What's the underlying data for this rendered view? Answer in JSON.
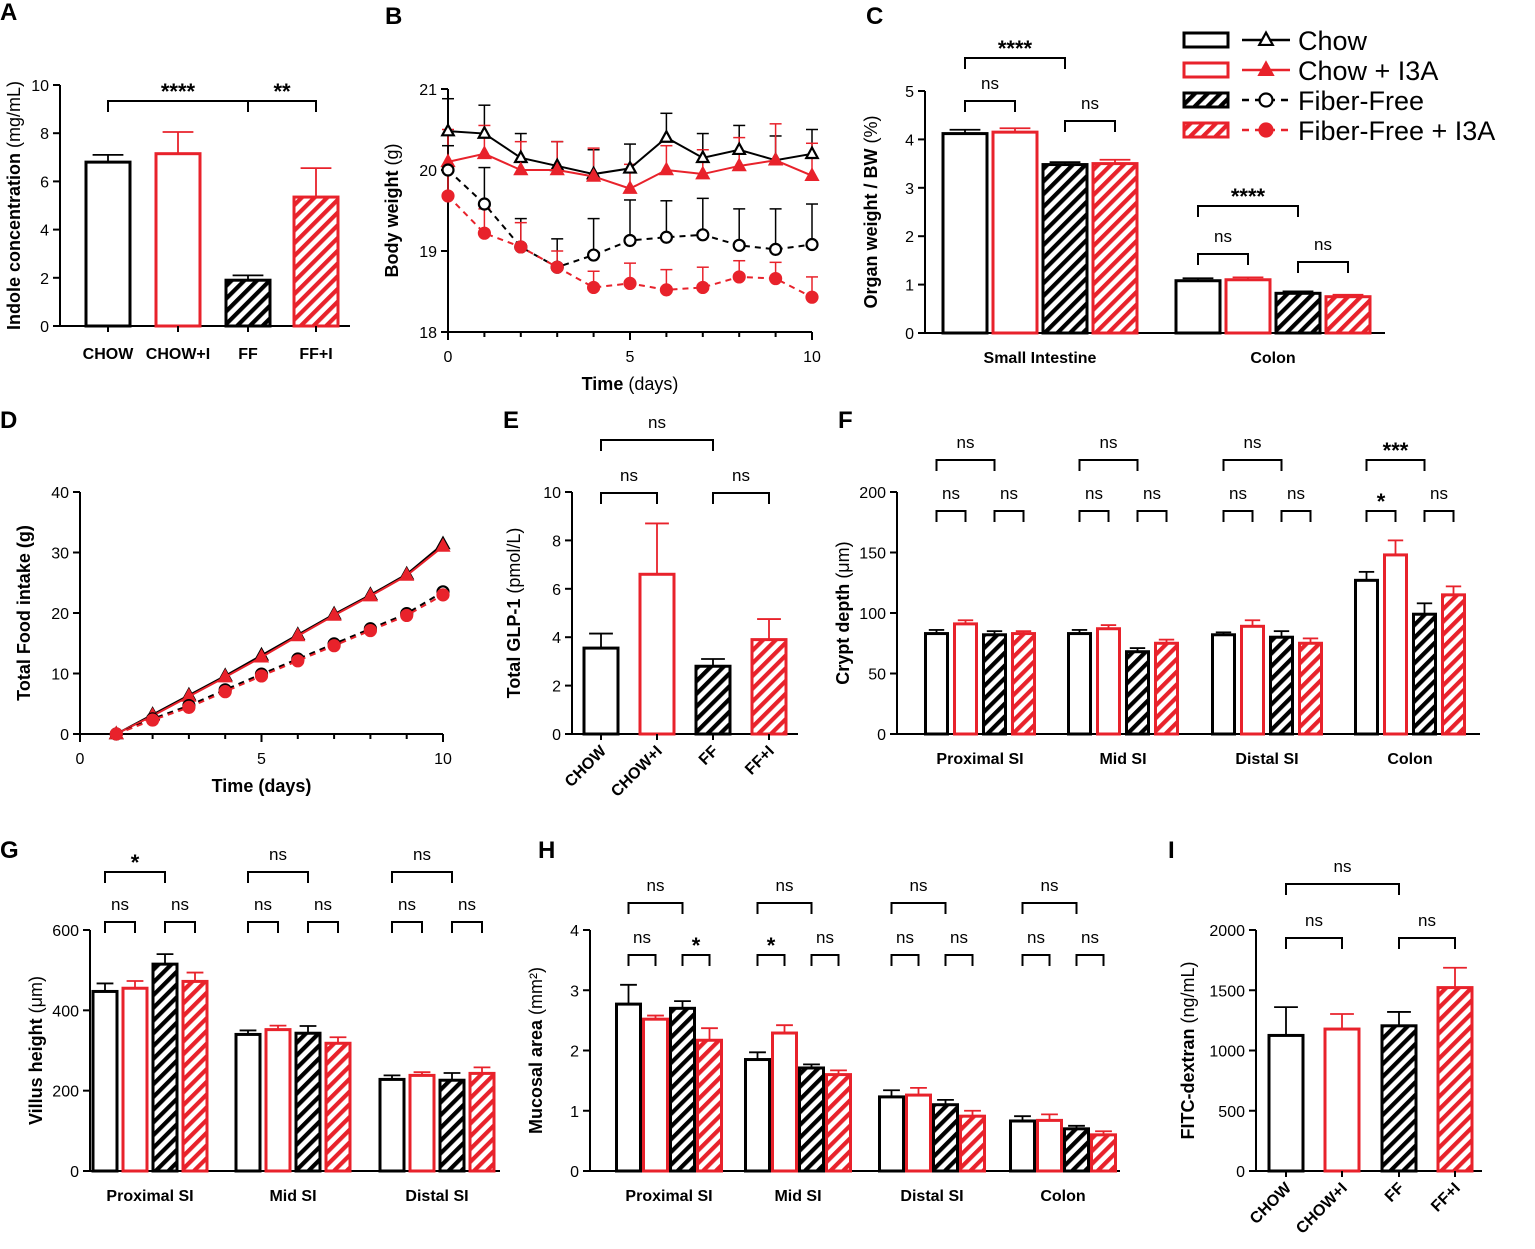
{
  "colors": {
    "chow": "#000000",
    "red": "#e8222b"
  },
  "legend": {
    "items": [
      {
        "label": "Chow",
        "style": "open-black",
        "marker": "triangle-open",
        "line": "solid"
      },
      {
        "label": "Chow + I3A",
        "style": "open-red",
        "marker": "triangle-filled",
        "line": "solid"
      },
      {
        "label": "Fiber-Free",
        "style": "hatch-black",
        "marker": "circle-open",
        "line": "dashed"
      },
      {
        "label": "Fiber-Free + I3A",
        "style": "hatch-red",
        "marker": "circle-filled",
        "line": "dashed"
      }
    ]
  },
  "chart_data": [
    {
      "id": "A",
      "panel": "A",
      "type": "bar",
      "categories": [
        "CHOW",
        "CHOW+I",
        "FF",
        "FF+I"
      ],
      "values": [
        6.8,
        7.15,
        1.9,
        5.35
      ],
      "errors": [
        0.3,
        0.9,
        0.2,
        1.2
      ],
      "ylabel": "Indole concentration",
      "yunit": "(mg/mL)",
      "ylim": [
        0,
        10
      ],
      "yticks": [
        0,
        2,
        4,
        6,
        8,
        10
      ],
      "sig": [
        {
          "from": 0,
          "to": 2,
          "label": "****",
          "level": 0
        },
        {
          "from": 2,
          "to": 3,
          "label": "**",
          "level": 0
        }
      ]
    },
    {
      "id": "B",
      "panel": "B",
      "type": "line",
      "xlabel": "Time",
      "xunit": "(days)",
      "ylabel": "Body weight",
      "yunit": "(g)",
      "xlim": [
        0,
        10
      ],
      "xticks": [
        0,
        5,
        10
      ],
      "ylim": [
        18,
        21
      ],
      "yticks": [
        18,
        19,
        20,
        21
      ],
      "x": [
        0,
        1,
        2,
        3,
        4,
        5,
        6,
        7,
        8,
        9,
        10
      ],
      "series": [
        {
          "name": "Chow",
          "values": [
            20.48,
            20.45,
            20.15,
            20.05,
            19.95,
            20.02,
            20.4,
            20.15,
            20.25,
            20.12,
            20.2
          ],
          "errors": [
            0.4,
            0.35,
            0.3,
            0.3,
            0.3,
            0.3,
            0.3,
            0.3,
            0.3,
            0.3,
            0.3
          ]
        },
        {
          "name": "Chow + I3A",
          "values": [
            20.1,
            20.2,
            20.0,
            20.0,
            19.92,
            19.77,
            20.0,
            19.95,
            20.05,
            20.12,
            19.93
          ],
          "errors": [
            0.4,
            0.35,
            0.35,
            0.35,
            0.35,
            0.3,
            0.3,
            0.3,
            0.35,
            0.45,
            0.4
          ]
        },
        {
          "name": "Fiber-Free",
          "values": [
            20.0,
            19.58,
            19.05,
            18.8,
            18.95,
            19.13,
            19.17,
            19.2,
            19.07,
            19.02,
            19.08
          ],
          "errors": [
            0.3,
            0.45,
            0.35,
            0.35,
            0.45,
            0.5,
            0.45,
            0.45,
            0.45,
            0.5,
            0.5
          ]
        },
        {
          "name": "Fiber-Free + I3A",
          "values": [
            19.68,
            19.22,
            19.05,
            18.8,
            18.55,
            18.6,
            18.52,
            18.55,
            18.68,
            18.66,
            18.43
          ],
          "errors": [
            0.3,
            0.3,
            0.3,
            0.2,
            0.2,
            0.25,
            0.25,
            0.25,
            0.2,
            0.2,
            0.25
          ]
        }
      ]
    },
    {
      "id": "C",
      "panel": "C",
      "type": "grouped-bar",
      "groups": [
        "Small Intestine",
        "Colon"
      ],
      "ylabel": "Organ weight / BW",
      "yunit": "(%)",
      "ylim": [
        0,
        5
      ],
      "yticks": [
        0,
        1,
        2,
        3,
        4,
        5
      ],
      "series": [
        {
          "name": "Chow",
          "values": [
            4.12,
            1.08
          ],
          "errors": [
            0.08,
            0.05
          ]
        },
        {
          "name": "Chow + I3A",
          "values": [
            4.15,
            1.1
          ],
          "errors": [
            0.08,
            0.05
          ]
        },
        {
          "name": "Fiber-Free",
          "values": [
            3.48,
            0.82
          ],
          "errors": [
            0.05,
            0.04
          ]
        },
        {
          "name": "Fiber-Free + I3A",
          "values": [
            3.5,
            0.75
          ],
          "errors": [
            0.08,
            0.04
          ]
        }
      ],
      "sig": [
        {
          "group": 0,
          "from": 0,
          "to": 1,
          "label": "ns",
          "level": 0
        },
        {
          "group": 0,
          "from": 2,
          "to": 3,
          "label": "ns",
          "level": 0
        },
        {
          "group": 0,
          "from": 0,
          "to": 2,
          "label": "****",
          "level": 1
        },
        {
          "group": 1,
          "from": 0,
          "to": 1,
          "label": "ns",
          "level": 0
        },
        {
          "group": 1,
          "from": 2,
          "to": 3,
          "label": "ns",
          "level": 0
        },
        {
          "group": 1,
          "from": 0,
          "to": 2,
          "label": "****",
          "level": 1
        }
      ]
    },
    {
      "id": "D",
      "panel": "D",
      "type": "line",
      "xlabel": "Time (days)",
      "xunit": "",
      "ylabel": "Total Food intake (g)",
      "yunit": "",
      "xlim": [
        0,
        10
      ],
      "xticks": [
        0,
        5,
        10
      ],
      "ylim": [
        0,
        40
      ],
      "yticks": [
        0,
        10,
        20,
        30,
        40
      ],
      "x": [
        1,
        2,
        3,
        4,
        5,
        6,
        7,
        8,
        9,
        10
      ],
      "series": [
        {
          "name": "Chow",
          "values": [
            0,
            3.2,
            6.4,
            9.6,
            13.0,
            16.4,
            19.8,
            23.0,
            26.4,
            31.4
          ]
        },
        {
          "name": "Chow + I3A",
          "values": [
            0,
            3.0,
            6.2,
            9.4,
            12.7,
            16.2,
            19.6,
            22.8,
            26.2,
            31.0
          ]
        },
        {
          "name": "Fiber-Free",
          "values": [
            0,
            2.5,
            4.7,
            7.3,
            9.9,
            12.4,
            14.9,
            17.4,
            19.9,
            23.5
          ]
        },
        {
          "name": "Fiber-Free + I3A",
          "values": [
            0,
            2.3,
            4.4,
            7.0,
            9.6,
            12.1,
            14.6,
            17.1,
            19.6,
            23.0
          ]
        }
      ]
    },
    {
      "id": "E",
      "panel": "E",
      "type": "bar",
      "categories": [
        "CHOW",
        "CHOW+I",
        "FF",
        "FF+I"
      ],
      "values": [
        3.55,
        6.6,
        2.8,
        3.9
      ],
      "errors": [
        0.6,
        2.1,
        0.3,
        0.85
      ],
      "ylabel": "Total GLP-1",
      "yunit": "(pmol/L)",
      "ylim": [
        0,
        10
      ],
      "yticks": [
        0,
        2,
        4,
        6,
        8,
        10
      ],
      "rotateX": true,
      "sig": [
        {
          "from": 0,
          "to": 1,
          "label": "ns",
          "level": 0
        },
        {
          "from": 2,
          "to": 3,
          "label": "ns",
          "level": 0
        },
        {
          "from": 0,
          "to": 2,
          "label": "ns",
          "level": 1
        }
      ]
    },
    {
      "id": "F",
      "panel": "F",
      "type": "grouped-bar",
      "groups": [
        "Proximal SI",
        "Mid SI",
        "Distal SI",
        "Colon"
      ],
      "ylabel": "Crypt depth",
      "yunit": "(μm)",
      "ylim": [
        0,
        200
      ],
      "yticks": [
        0,
        50,
        100,
        150,
        200
      ],
      "series": [
        {
          "name": "Chow",
          "values": [
            83,
            83,
            82,
            127
          ],
          "errors": [
            3,
            3,
            2,
            7
          ]
        },
        {
          "name": "Chow + I3A",
          "values": [
            91,
            87,
            89,
            148
          ],
          "errors": [
            3,
            3,
            5,
            12
          ]
        },
        {
          "name": "Fiber-Free",
          "values": [
            82,
            68,
            80,
            99
          ],
          "errors": [
            3,
            3,
            5,
            9
          ]
        },
        {
          "name": "Fiber-Free + I3A",
          "values": [
            83,
            75,
            75,
            115
          ],
          "errors": [
            2,
            3,
            4,
            7
          ]
        }
      ],
      "sig": [
        {
          "group": 0,
          "from": 0,
          "to": 1,
          "label": "ns",
          "level": 0
        },
        {
          "group": 0,
          "from": 2,
          "to": 3,
          "label": "ns",
          "level": 0
        },
        {
          "group": 0,
          "from": 0,
          "to": 2,
          "label": "ns",
          "level": 1
        },
        {
          "group": 1,
          "from": 0,
          "to": 1,
          "label": "ns",
          "level": 0
        },
        {
          "group": 1,
          "from": 2,
          "to": 3,
          "label": "ns",
          "level": 0
        },
        {
          "group": 1,
          "from": 0,
          "to": 2,
          "label": "ns",
          "level": 1
        },
        {
          "group": 2,
          "from": 0,
          "to": 1,
          "label": "ns",
          "level": 0
        },
        {
          "group": 2,
          "from": 2,
          "to": 3,
          "label": "ns",
          "level": 0
        },
        {
          "group": 2,
          "from": 0,
          "to": 2,
          "label": "ns",
          "level": 1
        },
        {
          "group": 3,
          "from": 0,
          "to": 1,
          "label": "*",
          "level": 0
        },
        {
          "group": 3,
          "from": 2,
          "to": 3,
          "label": "ns",
          "level": 0
        },
        {
          "group": 3,
          "from": 0,
          "to": 2,
          "label": "***",
          "level": 1
        }
      ]
    },
    {
      "id": "G",
      "panel": "G",
      "type": "grouped-bar",
      "groups": [
        "Proximal SI",
        "Mid SI",
        "Distal SI"
      ],
      "ylabel": "Villus height",
      "yunit": "(μm)",
      "ylim": [
        0,
        600
      ],
      "yticks": [
        0,
        200,
        400,
        600
      ],
      "series": [
        {
          "name": "Chow",
          "values": [
            447,
            340,
            228
          ],
          "errors": [
            20,
            10,
            10
          ]
        },
        {
          "name": "Chow + I3A",
          "values": [
            455,
            352,
            238
          ],
          "errors": [
            18,
            10,
            8
          ]
        },
        {
          "name": "Fiber-Free",
          "values": [
            515,
            343,
            226
          ],
          "errors": [
            25,
            18,
            18
          ]
        },
        {
          "name": "Fiber-Free + I3A",
          "values": [
            472,
            318,
            243
          ],
          "errors": [
            22,
            15,
            15
          ]
        }
      ],
      "sig": [
        {
          "group": 0,
          "from": 0,
          "to": 1,
          "label": "ns",
          "level": 0
        },
        {
          "group": 0,
          "from": 2,
          "to": 3,
          "label": "ns",
          "level": 0
        },
        {
          "group": 0,
          "from": 0,
          "to": 2,
          "label": "*",
          "level": 1
        },
        {
          "group": 1,
          "from": 0,
          "to": 1,
          "label": "ns",
          "level": 0
        },
        {
          "group": 1,
          "from": 2,
          "to": 3,
          "label": "ns",
          "level": 0
        },
        {
          "group": 1,
          "from": 0,
          "to": 2,
          "label": "ns",
          "level": 1
        },
        {
          "group": 2,
          "from": 0,
          "to": 1,
          "label": "ns",
          "level": 0
        },
        {
          "group": 2,
          "from": 2,
          "to": 3,
          "label": "ns",
          "level": 0
        },
        {
          "group": 2,
          "from": 0,
          "to": 2,
          "label": "ns",
          "level": 1
        }
      ]
    },
    {
      "id": "H",
      "panel": "H",
      "type": "grouped-bar",
      "groups": [
        "Proximal SI",
        "Mid SI",
        "Distal SI",
        "Colon"
      ],
      "ylabel": "Mucosal area",
      "yunit": "(mm²)",
      "ylim": [
        0,
        4
      ],
      "yticks": [
        0,
        1,
        2,
        3,
        4
      ],
      "series": [
        {
          "name": "Chow",
          "values": [
            2.77,
            1.85,
            1.23,
            0.83
          ],
          "errors": [
            0.32,
            0.12,
            0.11,
            0.08
          ]
        },
        {
          "name": "Chow + I3A",
          "values": [
            2.52,
            2.29,
            1.26,
            0.84
          ],
          "errors": [
            0.06,
            0.13,
            0.12,
            0.1
          ]
        },
        {
          "name": "Fiber-Free",
          "values": [
            2.7,
            1.71,
            1.1,
            0.7
          ],
          "errors": [
            0.12,
            0.06,
            0.08,
            0.05
          ]
        },
        {
          "name": "Fiber-Free + I3A",
          "values": [
            2.17,
            1.6,
            0.91,
            0.6
          ],
          "errors": [
            0.2,
            0.07,
            0.09,
            0.06
          ]
        }
      ],
      "sig": [
        {
          "group": 0,
          "from": 0,
          "to": 1,
          "label": "ns",
          "level": 0
        },
        {
          "group": 0,
          "from": 2,
          "to": 3,
          "label": "*",
          "level": 0
        },
        {
          "group": 0,
          "from": 0,
          "to": 2,
          "label": "ns",
          "level": 1
        },
        {
          "group": 1,
          "from": 0,
          "to": 1,
          "label": "*",
          "level": 0
        },
        {
          "group": 1,
          "from": 2,
          "to": 3,
          "label": "ns",
          "level": 0
        },
        {
          "group": 1,
          "from": 0,
          "to": 2,
          "label": "ns",
          "level": 1
        },
        {
          "group": 2,
          "from": 0,
          "to": 1,
          "label": "ns",
          "level": 0
        },
        {
          "group": 2,
          "from": 2,
          "to": 3,
          "label": "ns",
          "level": 0
        },
        {
          "group": 2,
          "from": 0,
          "to": 2,
          "label": "ns",
          "level": 1
        },
        {
          "group": 3,
          "from": 0,
          "to": 1,
          "label": "ns",
          "level": 0
        },
        {
          "group": 3,
          "from": 2,
          "to": 3,
          "label": "ns",
          "level": 0
        },
        {
          "group": 3,
          "from": 0,
          "to": 2,
          "label": "ns",
          "level": 1
        }
      ]
    },
    {
      "id": "I",
      "panel": "I",
      "type": "bar",
      "categories": [
        "CHOW",
        "CHOW+I",
        "FF",
        "FF+I"
      ],
      "values": [
        1125,
        1178,
        1205,
        1522
      ],
      "errors": [
        235,
        125,
        115,
        165
      ],
      "ylabel": "FITC-dextran",
      "yunit": "(ng/mL)",
      "ylim": [
        0,
        2000
      ],
      "yticks": [
        0,
        500,
        1000,
        1500,
        2000
      ],
      "rotateX": true,
      "sig": [
        {
          "from": 0,
          "to": 1,
          "label": "ns",
          "level": 0
        },
        {
          "from": 2,
          "to": 3,
          "label": "ns",
          "level": 0
        },
        {
          "from": 0,
          "to": 2,
          "label": "ns",
          "level": 1
        }
      ]
    }
  ]
}
